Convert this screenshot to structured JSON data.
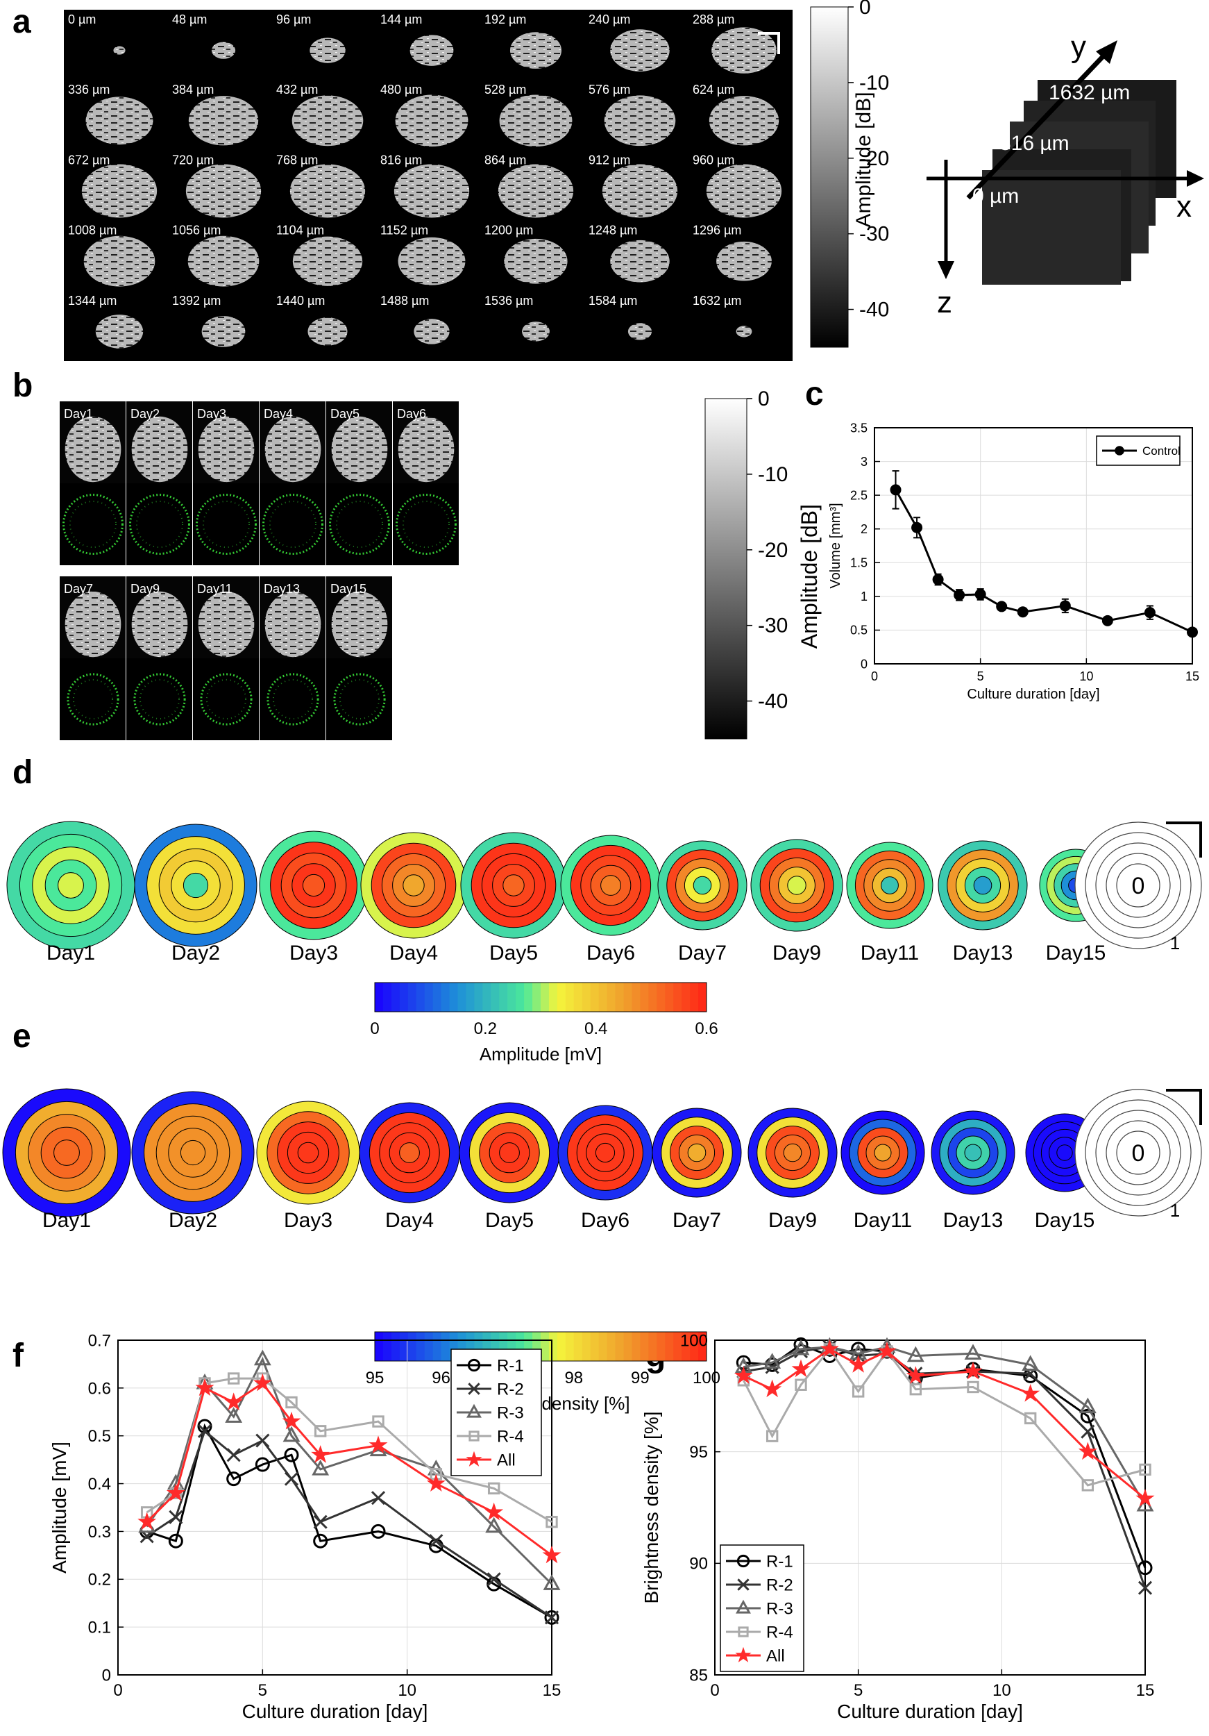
{
  "panel_letters": {
    "a": "a",
    "b": "b",
    "c": "c",
    "d": "d",
    "e": "e",
    "f": "f",
    "g": "g"
  },
  "panel_a": {
    "depth_labels": [
      "0 µm",
      "48 µm",
      "96 µm",
      "144 µm",
      "192 µm",
      "240 µm",
      "288 µm",
      "336 µm",
      "384 µm",
      "432 µm",
      "480 µm",
      "528 µm",
      "576 µm",
      "624 µm",
      "672 µm",
      "720 µm",
      "768 µm",
      "816 µm",
      "864 µm",
      "912 µm",
      "960 µm",
      "1008 µm",
      "1056 µm",
      "1104 µm",
      "1152 µm",
      "1200 µm",
      "1248 µm",
      "1296 µm",
      "1344 µm",
      "1392 µm",
      "1440 µm",
      "1488 µm",
      "1536 µm",
      "1584 µm",
      "1632 µm"
    ],
    "tile_sizes": [
      0.15,
      0.3,
      0.45,
      0.55,
      0.65,
      0.75,
      0.82,
      0.85,
      0.88,
      0.9,
      0.92,
      0.92,
      0.9,
      0.88,
      0.95,
      0.95,
      0.95,
      0.95,
      0.95,
      0.95,
      0.95,
      0.9,
      0.9,
      0.88,
      0.85,
      0.8,
      0.75,
      0.7,
      0.6,
      0.55,
      0.5,
      0.45,
      0.35,
      0.3,
      0.2
    ],
    "colorbar": {
      "ticks": [
        "0",
        "-10",
        "-20",
        "-30",
        "-40"
      ],
      "values": [
        0,
        -10,
        -20,
        -30,
        -40
      ],
      "min": -45,
      "max": 0,
      "label": "Amplitude [dB]"
    },
    "diagram": {
      "y": "y",
      "x": "x",
      "z": "z",
      "slices": [
        "1632 µm",
        "816 µm",
        "0 µm"
      ]
    }
  },
  "panel_b": {
    "days_row1": [
      "Day1",
      "Day2",
      "Day3",
      "Day4",
      "Day5",
      "Day6"
    ],
    "days_row2": [
      "Day7",
      "Day9",
      "Day11",
      "Day13",
      "Day15"
    ],
    "colorbar": {
      "ticks": [
        "0",
        "-10",
        "-20",
        "-30",
        "-40"
      ],
      "values": [
        0,
        -10,
        -20,
        -30,
        -40
      ],
      "min": -45,
      "max": 0,
      "label": "Amplitude [dB]"
    }
  },
  "chart_data": [
    {
      "panel": "c",
      "type": "line",
      "title": "",
      "xlabel": "Culture duration [day]",
      "ylabel": "Volume [mm³]",
      "xlim": [
        0,
        15
      ],
      "ylim": [
        0,
        3.5
      ],
      "xticks": [
        0,
        5,
        10,
        15
      ],
      "yticks": [
        0,
        0.5,
        1,
        1.5,
        2,
        2.5,
        3,
        3.5
      ],
      "xtick_labels": [
        "0",
        "5",
        "10",
        "15"
      ],
      "ytick_labels": [
        "0",
        "0.5",
        "1",
        "1.5",
        "2",
        "2.5",
        "3",
        "3.5"
      ],
      "legend": [
        "Control"
      ],
      "legend_position": "top-right",
      "series": [
        {
          "name": "Control",
          "x": [
            1,
            2,
            3,
            4,
            5,
            6,
            7,
            9,
            11,
            13,
            15
          ],
          "values": [
            2.58,
            2.02,
            1.25,
            1.02,
            1.03,
            0.85,
            0.77,
            0.86,
            0.64,
            0.76,
            0.47
          ],
          "errors": [
            0.28,
            0.15,
            0.08,
            0.08,
            0.08,
            0.03,
            0.03,
            0.1,
            0.05,
            0.1,
            0.03
          ]
        }
      ]
    },
    {
      "panel": "d",
      "type": "heatmap",
      "days": [
        "Day1",
        "Day2",
        "Day3",
        "Day4",
        "Day5",
        "Day6",
        "Day7",
        "Day9",
        "Day11",
        "Day13",
        "Day15"
      ],
      "ring_values_inner_to_outer": [
        [
          0.32,
          0.27,
          0.32,
          0.27,
          0.25
        ],
        [
          0.25,
          0.36,
          0.39,
          0.36,
          0.13
        ],
        [
          0.54,
          0.58,
          0.55,
          0.58,
          0.27
        ],
        [
          0.44,
          0.48,
          0.52,
          0.56,
          0.32
        ],
        [
          0.52,
          0.56,
          0.58,
          0.58,
          0.25
        ],
        [
          0.49,
          0.53,
          0.56,
          0.58,
          0.27
        ],
        [
          0.25,
          0.34,
          0.48,
          0.56,
          0.25
        ],
        [
          0.32,
          0.4,
          0.5,
          0.56,
          0.25
        ],
        [
          0.22,
          0.41,
          0.48,
          0.52,
          0.27
        ],
        [
          0.17,
          0.25,
          0.38,
          0.46,
          0.23
        ],
        [
          0.08,
          0.15,
          0.24,
          0.31,
          0.27
        ]
      ],
      "reference": {
        "center": "0",
        "edge": "1"
      },
      "colorbar": {
        "ticks": [
          "0",
          "0.2",
          "0.4",
          "0.6"
        ],
        "values": [
          0,
          0.2,
          0.4,
          0.6
        ],
        "min": 0,
        "max": 0.6,
        "label": "Amplitude [mV]"
      }
    },
    {
      "panel": "e",
      "type": "heatmap",
      "days": [
        "Day1",
        "Day2",
        "Day3",
        "Day4",
        "Day5",
        "Day6",
        "Day7",
        "Day9",
        "Day11",
        "Day13",
        "Day15"
      ],
      "ring_values_inner_to_outer": [
        [
          99.3,
          99.3,
          99.0,
          98.6,
          95.1
        ],
        [
          98.9,
          98.9,
          98.9,
          98.9,
          95.3
        ],
        [
          99.8,
          99.8,
          99.8,
          99.3,
          97.9
        ],
        [
          99.4,
          99.8,
          99.8,
          99.8,
          95.3
        ],
        [
          99.8,
          99.8,
          99.6,
          98.0,
          95.2
        ],
        [
          99.8,
          99.8,
          99.8,
          99.8,
          95.4
        ],
        [
          98.6,
          99.1,
          99.6,
          98.0,
          95.2
        ],
        [
          99.0,
          99.3,
          99.6,
          98.0,
          95.2
        ],
        [
          98.7,
          99.2,
          99.6,
          95.9,
          95.1
        ],
        [
          96.8,
          97.0,
          95.6,
          96.6,
          95.2
        ],
        [
          95.1,
          95.1,
          95.1,
          95.1,
          95.1
        ]
      ],
      "reference": {
        "center": "0",
        "edge": "1"
      },
      "colorbar": {
        "ticks": [
          "95",
          "96",
          "97",
          "98",
          "99",
          "100"
        ],
        "values": [
          95,
          96,
          97,
          98,
          99,
          100
        ],
        "min": 95,
        "max": 100,
        "label": "Brightness density [%]"
      }
    },
    {
      "panel": "f",
      "type": "line",
      "xlabel": "Culture duration [day]",
      "ylabel": "Amplitude [mV]",
      "xlim": [
        0,
        15
      ],
      "ylim": [
        0,
        0.7
      ],
      "xticks": [
        0,
        5,
        10,
        15
      ],
      "yticks": [
        0,
        0.1,
        0.2,
        0.3,
        0.4,
        0.5,
        0.6,
        0.7
      ],
      "xtick_labels": [
        "0",
        "5",
        "10",
        "15"
      ],
      "ytick_labels": [
        "0",
        "0.1",
        "0.2",
        "0.3",
        "0.4",
        "0.5",
        "0.6",
        "0.7"
      ],
      "legend_position": "top-right",
      "x": [
        1,
        2,
        3,
        4,
        5,
        6,
        7,
        9,
        11,
        13,
        15
      ],
      "series": [
        {
          "name": "R-1",
          "marker": "circle",
          "color": "#000000",
          "values": [
            0.3,
            0.28,
            0.52,
            0.41,
            0.44,
            0.46,
            0.28,
            0.3,
            0.27,
            0.19,
            0.12
          ]
        },
        {
          "name": "R-2",
          "marker": "x",
          "color": "#333333",
          "values": [
            0.29,
            0.33,
            0.51,
            0.46,
            0.49,
            0.41,
            0.32,
            0.37,
            0.28,
            0.2,
            0.12
          ]
        },
        {
          "name": "R-3",
          "marker": "triangle",
          "color": "#666666",
          "values": [
            0.31,
            0.4,
            0.61,
            0.54,
            0.66,
            0.5,
            0.43,
            0.47,
            0.43,
            0.31,
            0.19
          ]
        },
        {
          "name": "R-4",
          "marker": "square",
          "color": "#aaaaaa",
          "values": [
            0.34,
            0.38,
            0.61,
            0.62,
            0.62,
            0.57,
            0.51,
            0.53,
            0.42,
            0.39,
            0.32
          ]
        },
        {
          "name": "All",
          "marker": "star",
          "color": "#ff2a2a",
          "values": [
            0.32,
            0.38,
            0.6,
            0.57,
            0.61,
            0.53,
            0.46,
            0.48,
            0.4,
            0.34,
            0.25
          ]
        }
      ]
    },
    {
      "panel": "g",
      "type": "line",
      "xlabel": "Culture duration [day]",
      "ylabel": "Brightness density [%]",
      "xlim": [
        0,
        15
      ],
      "ylim": [
        85,
        100
      ],
      "xticks": [
        0,
        5,
        10,
        15
      ],
      "yticks": [
        85,
        90,
        95,
        100
      ],
      "xtick_labels": [
        "0",
        "5",
        "10",
        "15"
      ],
      "ytick_labels": [
        "85",
        "90",
        "95",
        "100"
      ],
      "legend_position": "bottom-left",
      "x": [
        1,
        2,
        3,
        4,
        5,
        6,
        7,
        9,
        11,
        13,
        15
      ],
      "series": [
        {
          "name": "R-1",
          "marker": "circle",
          "color": "#000000",
          "values": [
            99.0,
            98.9,
            99.8,
            99.3,
            99.6,
            99.5,
            98.3,
            98.7,
            98.4,
            96.6,
            89.8
          ]
        },
        {
          "name": "R-2",
          "marker": "x",
          "color": "#333333",
          "values": [
            98.6,
            98.8,
            99.5,
            99.7,
            99.3,
            99.4,
            98.5,
            98.6,
            98.5,
            95.9,
            88.9
          ]
        },
        {
          "name": "R-3",
          "marker": "triangle",
          "color": "#666666",
          "values": [
            98.8,
            99.0,
            99.6,
            99.7,
            99.4,
            99.7,
            99.3,
            99.4,
            98.9,
            97.0,
            92.6
          ]
        },
        {
          "name": "R-4",
          "marker": "square",
          "color": "#aaaaaa",
          "values": [
            98.2,
            95.7,
            98.0,
            99.6,
            97.7,
            99.5,
            97.8,
            97.9,
            96.5,
            93.5,
            94.2
          ]
        },
        {
          "name": "All",
          "marker": "star",
          "color": "#ff2a2a",
          "values": [
            98.4,
            97.8,
            98.7,
            99.6,
            98.9,
            99.5,
            98.4,
            98.6,
            97.6,
            95.0,
            92.9
          ]
        }
      ]
    }
  ]
}
